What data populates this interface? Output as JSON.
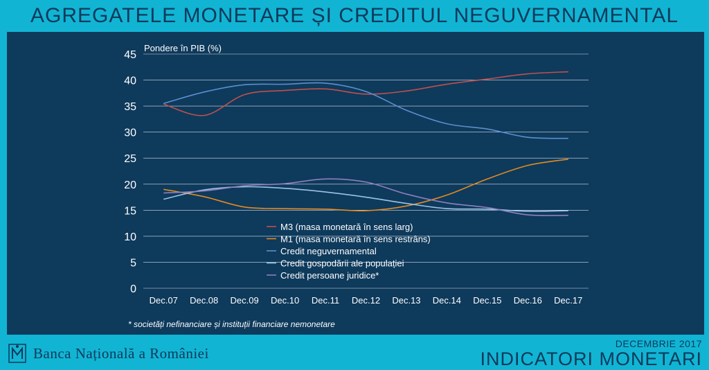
{
  "page_title": "AGREGATELE MONETARE ȘI CREDITUL NEGUVERNAMENTAL",
  "footer": {
    "bank_name": "Banca Națională a României",
    "date": "DECEMBRIE 2017",
    "report": "INDICATORI MONETARI"
  },
  "colors": {
    "background": "#12b4d4",
    "panel": "#0e3a5c",
    "text": "#ffffff"
  },
  "chart_data": {
    "type": "line",
    "title": "",
    "ylabel": "Pondere în PIB  (%)",
    "xlabel": "",
    "ylim": [
      0,
      45
    ],
    "yticks": [
      0,
      5,
      10,
      15,
      20,
      25,
      30,
      35,
      40,
      45
    ],
    "grid": true,
    "legend_position": "center",
    "categories": [
      "Dec.07",
      "Dec.08",
      "Dec.09",
      "Dec.10",
      "Dec.11",
      "Dec.12",
      "Dec.13",
      "Dec.14",
      "Dec.15",
      "Dec.16",
      "Dec.17"
    ],
    "series": [
      {
        "name": "M3 (masa monetară în sens larg)",
        "color": "#c0504d",
        "values": [
          35.4,
          33.2,
          37.2,
          38.0,
          38.3,
          37.3,
          37.9,
          39.2,
          40.2,
          41.2,
          41.6
        ]
      },
      {
        "name": "M1 (masa monetară în sens restrâns)",
        "color": "#e58a1f",
        "values": [
          19.0,
          17.6,
          15.6,
          15.3,
          15.2,
          14.9,
          15.8,
          17.9,
          21.0,
          23.6,
          24.8
        ]
      },
      {
        "name": "Credit neguvernamental",
        "color": "#5b8fcf",
        "values": [
          35.5,
          37.7,
          39.1,
          39.2,
          39.4,
          37.8,
          34.2,
          31.6,
          30.6,
          29.0,
          28.8
        ]
      },
      {
        "name": "Credit gospodării ale populației",
        "color": "#9cc3e6",
        "values": [
          17.1,
          18.9,
          19.5,
          19.2,
          18.5,
          17.5,
          16.3,
          15.3,
          15.2,
          14.8,
          14.9
        ]
      },
      {
        "name": "Credit persoane juridice*",
        "color": "#8f7fbf",
        "values": [
          18.3,
          18.7,
          19.7,
          20.1,
          21.0,
          20.4,
          18.1,
          16.4,
          15.5,
          14.1,
          14.0
        ]
      }
    ],
    "footnote": "* societăți nefinanciare și instituții financiare nemonetare"
  }
}
